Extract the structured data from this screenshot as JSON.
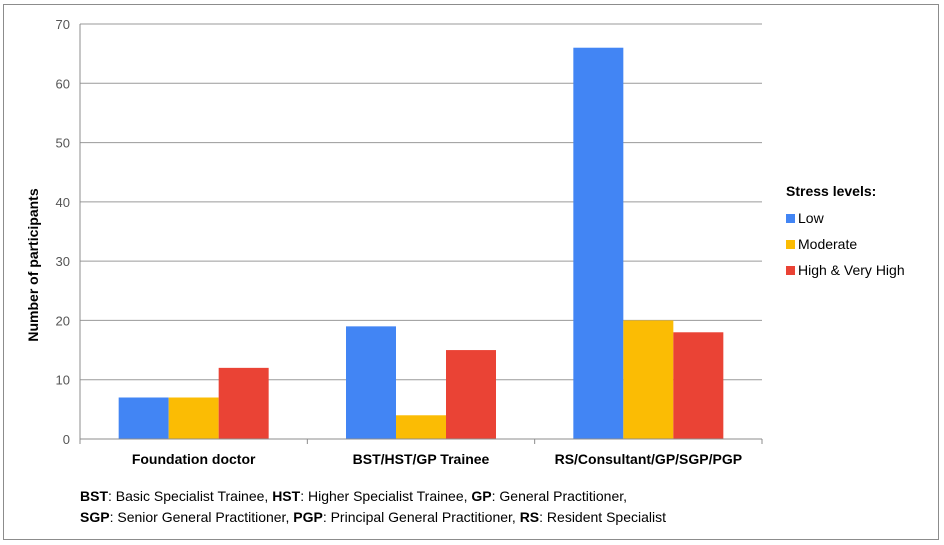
{
  "chart_data": {
    "type": "bar",
    "categories": [
      "Foundation doctor",
      "BST/HST/GP Trainee",
      "RS/Consultant/GP/SGP/PGP"
    ],
    "series": [
      {
        "name": "Low",
        "values": [
          7,
          19,
          66
        ],
        "color": "#4285F4"
      },
      {
        "name": "Moderate",
        "values": [
          7,
          4,
          20
        ],
        "color": "#FBBC04"
      },
      {
        "name": "High & Very High",
        "values": [
          12,
          15,
          18
        ],
        "color": "#EA4335"
      }
    ],
    "ylabel": "Number of participants",
    "ylim": [
      0,
      70
    ],
    "yticks": [
      0,
      10,
      20,
      30,
      40,
      50,
      60,
      70
    ],
    "grid": true,
    "legend_title": "Stress levels:",
    "legend_position": "right"
  },
  "footnote": {
    "line1": [
      {
        "abbr": "BST",
        "text": ": Basic Specialist Trainee, "
      },
      {
        "abbr": "HST",
        "text": ": Higher Specialist Trainee, "
      },
      {
        "abbr": "GP",
        "text": ": General Practitioner,"
      }
    ],
    "line2": [
      {
        "abbr": "SGP",
        "text": ": Senior General Practitioner,  "
      },
      {
        "abbr": "PGP",
        "text": ": Principal General Practitioner, "
      },
      {
        "abbr": "RS",
        "text": ": Resident Specialist"
      }
    ]
  }
}
